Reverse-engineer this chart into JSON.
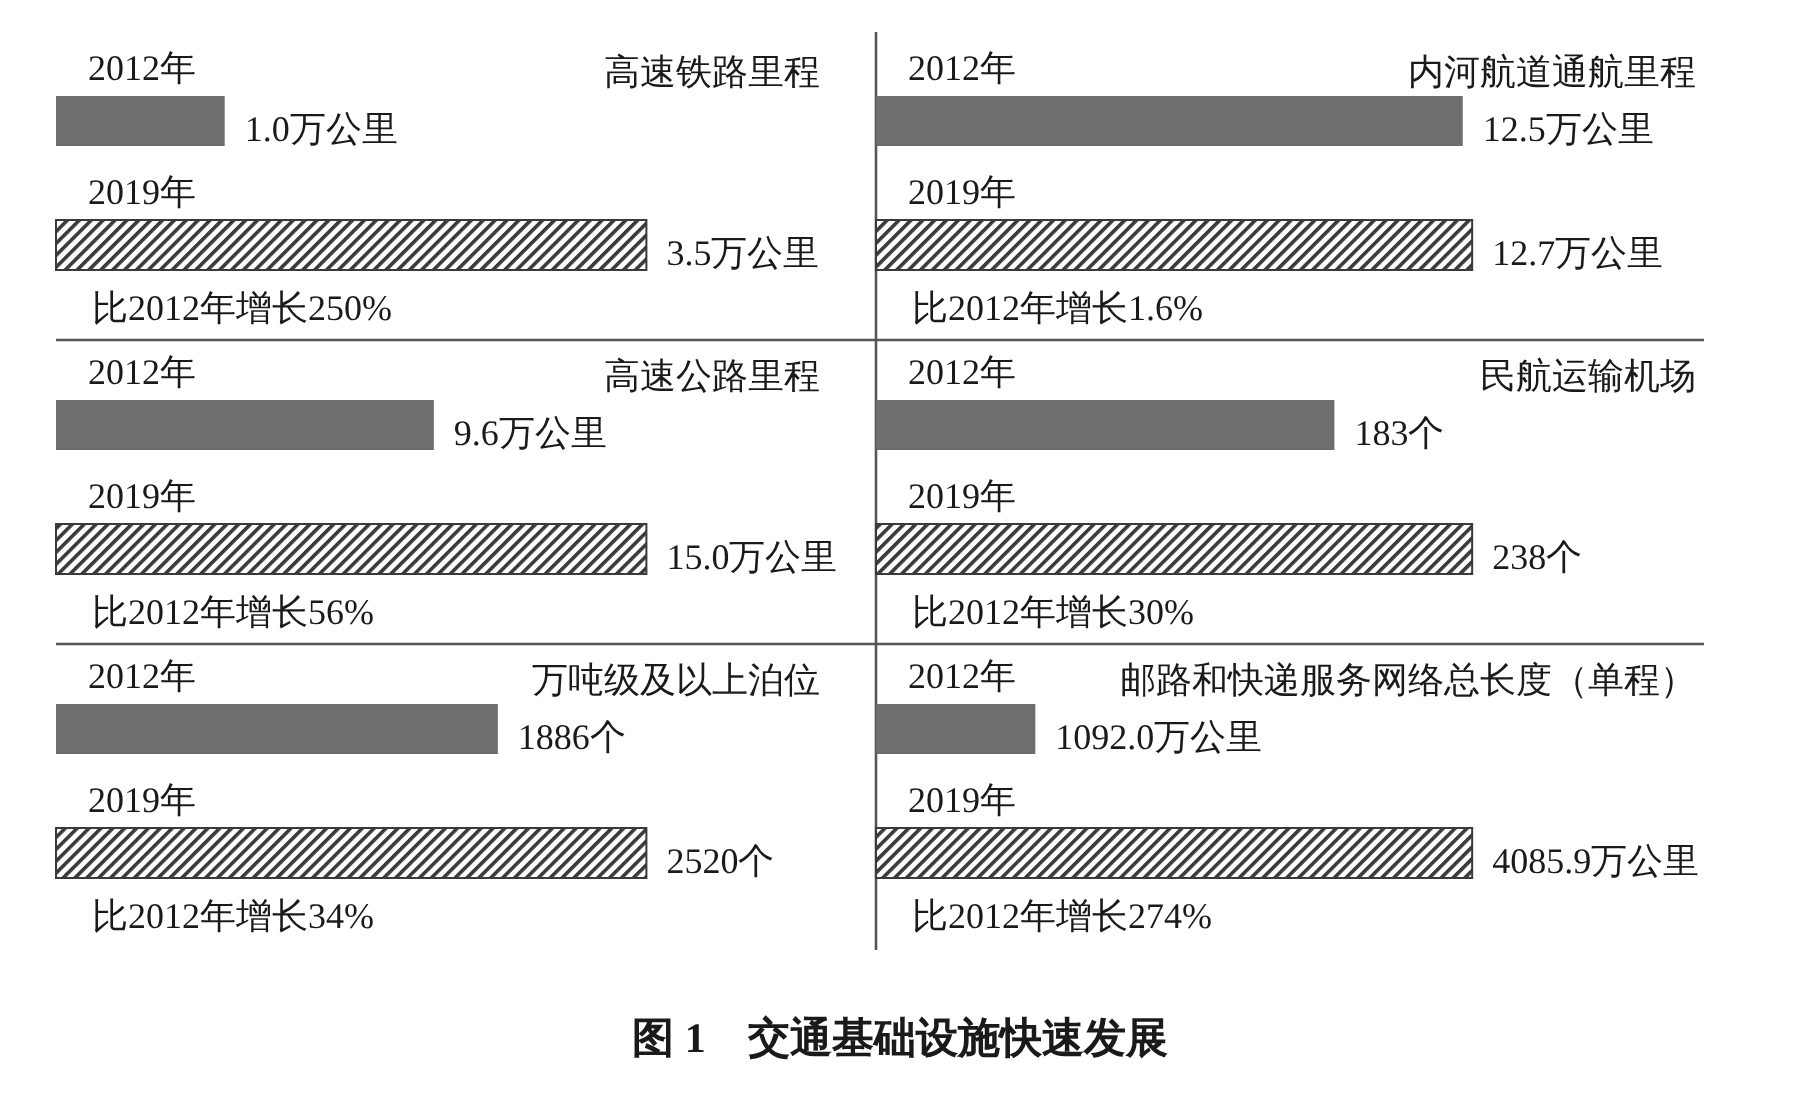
{
  "chart_data": [
    {
      "type": "bar",
      "orientation": "horizontal",
      "title": "高速铁路里程",
      "categories": [
        "2012年",
        "2019年"
      ],
      "values": [
        1.0,
        3.5
      ],
      "colors": [
        "#6e6e6e",
        "#3a3a3a"
      ],
      "value_labels": [
        "1.0万公里",
        "3.5万公里"
      ],
      "annotations": [
        "比2012年增长250%"
      ]
    },
    {
      "type": "bar",
      "orientation": "horizontal",
      "title": "内河航道通航里程",
      "categories": [
        "2012年",
        "2019年"
      ],
      "values": [
        12.5,
        12.7
      ],
      "colors": [
        "#6e6e6e",
        "#3a3a3a"
      ],
      "value_labels": [
        "12.5万公里",
        "12.7万公里"
      ],
      "annotations": [
        "比2012年增长1.6%"
      ]
    },
    {
      "type": "bar",
      "orientation": "horizontal",
      "title": "高速公路里程",
      "categories": [
        "2012年",
        "2019年"
      ],
      "values": [
        9.6,
        15.0
      ],
      "colors": [
        "#6e6e6e",
        "#3a3a3a"
      ],
      "value_labels": [
        "9.6万公里",
        "15.0万公里"
      ],
      "annotations": [
        "比2012年增长56%"
      ]
    },
    {
      "type": "bar",
      "orientation": "horizontal",
      "title": "民航运输机场",
      "categories": [
        "2012年",
        "2019年"
      ],
      "values": [
        183,
        238
      ],
      "colors": [
        "#6e6e6e",
        "#3a3a3a"
      ],
      "value_labels": [
        "183个",
        "238个"
      ],
      "annotations": [
        "比2012年增长30%"
      ]
    },
    {
      "type": "bar",
      "orientation": "horizontal",
      "title": "万吨级及以上泊位",
      "categories": [
        "2012年",
        "2019年"
      ],
      "values": [
        1886,
        2520
      ],
      "colors": [
        "#6e6e6e",
        "#3a3a3a"
      ],
      "value_labels": [
        "1886个",
        "2520个"
      ],
      "annotations": [
        "比2012年增长34%"
      ]
    },
    {
      "type": "bar",
      "orientation": "horizontal",
      "title": "邮路和快递服务网络总长度（单程）",
      "categories": [
        "2012年",
        "2019年"
      ],
      "values": [
        1092.0,
        4085.9
      ],
      "colors": [
        "#6e6e6e",
        "#3a3a3a"
      ],
      "value_labels": [
        "1092.0万公里",
        "4085.9万公里"
      ],
      "annotations": [
        "比2012年增长274%",
        "图 1　交通基础设施快速发展"
      ]
    }
  ]
}
